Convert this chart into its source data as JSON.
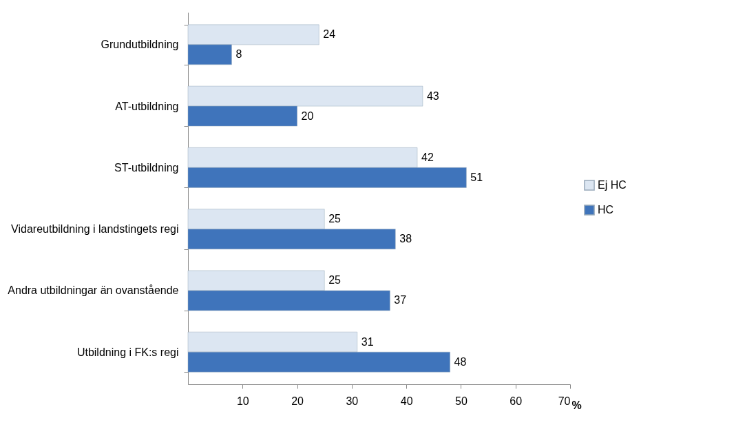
{
  "chart_data": {
    "type": "bar",
    "orientation": "horizontal",
    "xlabel": "%",
    "categories": [
      "Grundutbildning",
      "AT-utbildning",
      "ST-utbildning",
      "Vidareutbildning i landstingets regi",
      "Andra utbildningar än ovanstående",
      "Utbildning i FK:s regi"
    ],
    "series": [
      {
        "name": "Ej HC",
        "color": "#dce6f2",
        "values": [
          24,
          43,
          42,
          25,
          25,
          31
        ]
      },
      {
        "name": "HC",
        "color": "#3f74bb",
        "values": [
          8,
          20,
          51,
          38,
          37,
          48
        ]
      }
    ],
    "xlim": [
      0,
      70
    ],
    "xticks": [
      10,
      20,
      30,
      40,
      50,
      60,
      70
    ],
    "data_labels": true,
    "grid": false,
    "legend": "right"
  }
}
